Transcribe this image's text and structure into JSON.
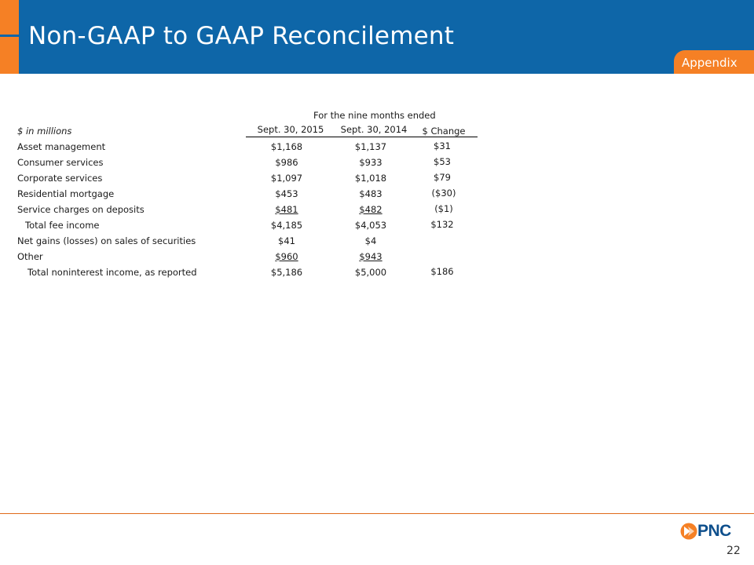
{
  "slide": {
    "title": "Non-GAAP to GAAP Reconcilement",
    "tab_label": "Appendix",
    "page_number": "22",
    "logo_text": "PNC"
  },
  "colors": {
    "header_blue": "#0e66a8",
    "accent_orange": "#f58025",
    "logo_blue": "#0e4f8c"
  },
  "table": {
    "period_header": "For the nine months ended",
    "unit_label": "$ in millions",
    "col1": "Sept. 30, 2015",
    "col2": "Sept. 30, 2014",
    "col3": "$ Change",
    "rows": [
      {
        "label": "Asset management",
        "v2015": "$1,168",
        "v2014": "$1,137",
        "change": "$31"
      },
      {
        "label": "Consumer services",
        "v2015": "$986",
        "v2014": "$933",
        "change": "$53"
      },
      {
        "label": "Corporate services",
        "v2015": "$1,097",
        "v2014": "$1,018",
        "change": "$79"
      },
      {
        "label": "Residential mortgage",
        "v2015": "$453",
        "v2014": "$483",
        "change": "($30)"
      },
      {
        "label": "Service charges on deposits",
        "v2015": "$481",
        "v2014": "$482",
        "change": "($1)"
      },
      {
        "label": "Total fee income",
        "v2015": "$4,185",
        "v2014": "$4,053",
        "change": "$132"
      },
      {
        "label": "Net gains (losses) on sales of securities",
        "v2015": "$41",
        "v2014": "$4",
        "change": ""
      },
      {
        "label": "Other",
        "v2015": "$960",
        "v2014": "$943",
        "change": ""
      },
      {
        "label": "Total noninterest income, as reported",
        "v2015": "$5,186",
        "v2014": "$5,000",
        "change": "$186"
      }
    ]
  }
}
